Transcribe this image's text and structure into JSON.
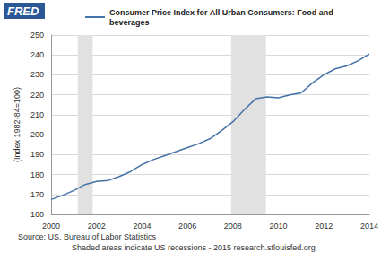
{
  "chart_data": {
    "type": "line",
    "logo": "FRED",
    "y_label": "(Index 1982-84=100)",
    "source": "Source: US. Bureau of Labor Statistics",
    "note": "Shaded areas indicate US recessions - 2015 research.stlouisfed.org",
    "series": [
      {
        "name": "Consumer Price Index for All Urban Consumers: Food and beverages",
        "color": "#4572a7",
        "x": [
          2000,
          2000.5,
          2001,
          2001.5,
          2002,
          2002.5,
          2003,
          2003.5,
          2004,
          2004.5,
          2005,
          2005.5,
          2006,
          2006.5,
          2007,
          2007.5,
          2008,
          2008.5,
          2009,
          2009.5,
          2010,
          2010.5,
          2011,
          2011.5,
          2012,
          2012.5,
          2013,
          2013.5,
          2014
        ],
        "values": [
          167.5,
          169.5,
          172,
          175,
          176.5,
          177,
          179,
          181.5,
          185,
          187.5,
          189.5,
          191.5,
          193.5,
          195.5,
          198,
          202,
          206.5,
          212.5,
          218,
          219,
          218.5,
          220,
          221,
          226,
          230,
          233,
          234.5,
          237,
          240.5
        ]
      }
    ],
    "recessions": [
      {
        "start": 2001.17,
        "end": 2001.83
      },
      {
        "start": 2007.92,
        "end": 2009.45
      }
    ],
    "xlim": [
      2000,
      2014
    ],
    "xticks": [
      2000,
      2002,
      2004,
      2006,
      2008,
      2010,
      2012,
      2014
    ],
    "ylim": [
      160,
      250
    ],
    "yticks": [
      160,
      170,
      180,
      190,
      200,
      210,
      220,
      230,
      240,
      250
    ],
    "grid": true,
    "legend": "top"
  }
}
